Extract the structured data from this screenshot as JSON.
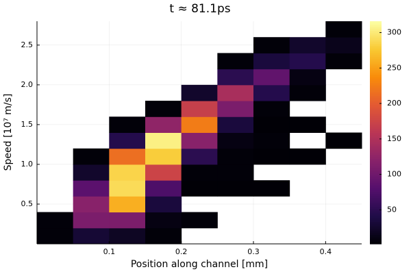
{
  "chart_data": {
    "type": "heatmap",
    "title": "t ≈ 81.1ps",
    "x_label": "Position along channel [mm]",
    "y_label": "Speed [10⁷ m/s]",
    "xbins": [
      0,
      0.05,
      0.1,
      0.15,
      0.2,
      0.25,
      0.3,
      0.35,
      0.4,
      0.45
    ],
    "ybins": [
      0,
      0.2,
      0.4,
      0.6,
      0.8,
      1.0,
      1.2,
      1.4,
      1.6,
      1.8,
      2.0,
      2.2,
      2.4,
      2.6,
      2.8
    ],
    "z": [
      [
        5,
        30,
        20,
        5,
        null,
        null,
        null,
        null,
        null
      ],
      [
        5,
        110,
        110,
        10,
        5,
        null,
        null,
        null,
        null
      ],
      [
        null,
        120,
        260,
        35,
        null,
        null,
        null,
        null,
        null
      ],
      [
        null,
        85,
        290,
        75,
        3,
        3,
        3,
        null,
        null
      ],
      [
        null,
        25,
        285,
        175,
        5,
        5,
        null,
        null,
        null
      ],
      [
        null,
        5,
        215,
        280,
        50,
        5,
        3,
        3,
        null
      ],
      [
        null,
        null,
        45,
        305,
        120,
        10,
        5,
        null,
        3
      ],
      [
        null,
        null,
        5,
        125,
        225,
        35,
        3,
        3,
        null
      ],
      [
        null,
        null,
        null,
        5,
        170,
        110,
        5,
        null,
        null
      ],
      [
        null,
        null,
        null,
        null,
        25,
        145,
        45,
        5,
        null
      ],
      [
        null,
        null,
        null,
        null,
        null,
        50,
        90,
        10,
        null
      ],
      [
        null,
        null,
        null,
        null,
        null,
        5,
        35,
        45,
        5
      ],
      [
        null,
        null,
        null,
        null,
        null,
        null,
        5,
        25,
        15
      ],
      [
        null,
        null,
        null,
        null,
        null,
        null,
        null,
        null,
        5
      ]
    ],
    "xlim": [
      0,
      0.45
    ],
    "ylim": [
      0,
      2.8
    ],
    "xticks": [
      0.1,
      0.2,
      0.3,
      0.4
    ],
    "yticks": [
      0.5,
      {
        "value": 1,
        "label": "1.0"
      },
      1.5,
      {
        "value": 2,
        "label": "2.0"
      },
      2.5
    ],
    "clim": [
      2,
      316
    ],
    "cticks": [
      50,
      100,
      150,
      200,
      250,
      300
    ],
    "colormap": "inferno",
    "grid": true
  }
}
